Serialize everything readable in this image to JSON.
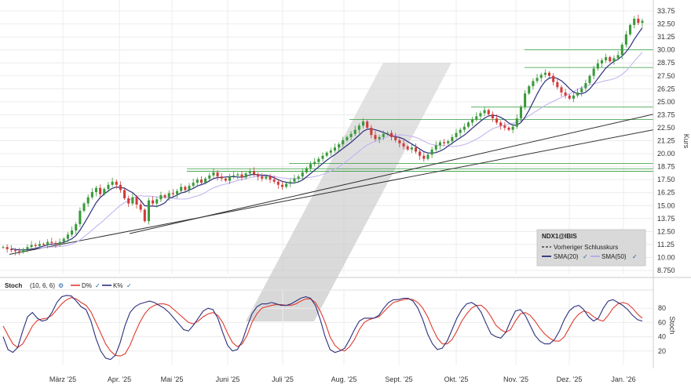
{
  "chart_data": [
    {
      "type": "candlestick",
      "symbol": "NDX1@IBIS",
      "ylabel": "Kurs",
      "ylim": [
        8.75,
        33.75
      ],
      "y_ticks": [
        "33.75",
        "32.50",
        "31.25",
        "30.00",
        "28.75",
        "27.50",
        "26.25",
        "25.00",
        "23.75",
        "22.50",
        "21.25",
        "20.00",
        "18.75",
        "17.50",
        "16.25",
        "15.00",
        "13.75",
        "12.50",
        "11.25",
        "10.00",
        "8.750"
      ],
      "x_ticks": [
        "März '25",
        "Apr. '25",
        "Mai '25",
        "Juni '25",
        "Juli '25",
        "Aug. '25",
        "Sept. '25",
        "Okt. '25",
        "Nov. '25",
        "Dez. '25",
        "Jan. '26"
      ],
      "legend": {
        "title": "NDX1@IBIS",
        "items": [
          "Vorheriger Schlusskurs",
          "SMA(20)",
          "SMA(50)"
        ]
      },
      "close_series": [
        11.0,
        10.8,
        10.7,
        10.6,
        10.5,
        10.8,
        11.0,
        11.2,
        11.1,
        11.3,
        11.2,
        11.5,
        11.4,
        11.3,
        11.5,
        11.8,
        12.2,
        12.6,
        13.2,
        14.5,
        15.2,
        15.8,
        16.3,
        16.7,
        16.1,
        16.6,
        17.0,
        17.3,
        17.0,
        16.5,
        15.7,
        15.2,
        15.8,
        15.1,
        14.6,
        13.5,
        15.5,
        15.2,
        15.6,
        16.0,
        15.8,
        16.2,
        16.1,
        16.4,
        16.8,
        16.5,
        16.9,
        17.2,
        17.5,
        17.2,
        17.6,
        17.9,
        18.2,
        17.8,
        17.6,
        17.4,
        17.8,
        17.9,
        18.0,
        17.7,
        18.1,
        18.3,
        18.0,
        17.8,
        17.6,
        17.8,
        17.5,
        17.3,
        17.0,
        16.8,
        17.1,
        17.3,
        17.6,
        17.8,
        18.2,
        18.6,
        19.0,
        19.2,
        19.5,
        19.8,
        20.1,
        20.3,
        20.6,
        20.9,
        21.3,
        21.6,
        21.9,
        22.3,
        22.7,
        23.1,
        22.5,
        21.8,
        21.4,
        21.6,
        21.9,
        22.0,
        21.6,
        21.3,
        21.0,
        20.7,
        20.4,
        20.6,
        20.2,
        19.8,
        19.5,
        19.9,
        20.4,
        20.8,
        21.1,
        21.0,
        21.2,
        21.6,
        22.0,
        22.3,
        22.6,
        23.0,
        23.3,
        23.6,
        23.9,
        24.2,
        23.8,
        23.4,
        23.0,
        22.7,
        22.5,
        22.3,
        22.6,
        23.4,
        24.5,
        25.8,
        26.5,
        27.0,
        27.3,
        27.6,
        27.8,
        27.5,
        26.9,
        26.4,
        25.9,
        25.6,
        25.3,
        25.6,
        25.9,
        26.3,
        26.8,
        27.5,
        28.2,
        28.7,
        29.0,
        29.3,
        28.9,
        29.2,
        29.5,
        30.5,
        31.5,
        32.4,
        33.0,
        32.6,
        32.8
      ]
    },
    {
      "type": "line",
      "label": "Stoch",
      "params": "(10, 6, 6)",
      "ylabel": "Stoch",
      "ylim": [
        0,
        100
      ],
      "y_ticks": [
        "80",
        "60",
        "40",
        "20"
      ],
      "series": [
        {
          "name": "D%",
          "color": "#e03b2e",
          "values": [
            55,
            42,
            30,
            25,
            30,
            42,
            55,
            63,
            65,
            66,
            70,
            78,
            86,
            92,
            95,
            93,
            88,
            84,
            75,
            60,
            45,
            30,
            20,
            14,
            13,
            16,
            28,
            45,
            60,
            72,
            80,
            84,
            86,
            86,
            84,
            78,
            72,
            66,
            60,
            58,
            62,
            68,
            72,
            74,
            70,
            60,
            45,
            32,
            26,
            30,
            42,
            60,
            72,
            80,
            82,
            84,
            85,
            85,
            84,
            84,
            86,
            90,
            93,
            93,
            88,
            76,
            60,
            40,
            28,
            22,
            20,
            26,
            36,
            50,
            60,
            64,
            66,
            68,
            75,
            82,
            88,
            90,
            92,
            93,
            92,
            88,
            80,
            68,
            52,
            38,
            30,
            30,
            36,
            48,
            62,
            72,
            80,
            84,
            84,
            78,
            68,
            56,
            50,
            46,
            50,
            62,
            72,
            74,
            70,
            62,
            52,
            44,
            38,
            34,
            34,
            40,
            52,
            64,
            72,
            76,
            74,
            68,
            64,
            62,
            70,
            80,
            86,
            88,
            86,
            80,
            72,
            66
          ]
        },
        {
          "name": "K%",
          "color": "#2b2f7c",
          "values": [
            40,
            22,
            18,
            25,
            48,
            68,
            74,
            66,
            62,
            64,
            74,
            88,
            96,
            98,
            97,
            90,
            82,
            78,
            62,
            38,
            20,
            10,
            8,
            14,
            32,
            56,
            74,
            82,
            86,
            88,
            90,
            88,
            84,
            80,
            74,
            66,
            58,
            50,
            48,
            56,
            66,
            76,
            80,
            78,
            66,
            46,
            28,
            20,
            22,
            34,
            54,
            72,
            82,
            86,
            86,
            88,
            86,
            84,
            84,
            86,
            90,
            94,
            96,
            94,
            84,
            64,
            40,
            22,
            18,
            20,
            24,
            36,
            50,
            62,
            66,
            66,
            66,
            70,
            80,
            88,
            92,
            92,
            94,
            94,
            90,
            80,
            64,
            44,
            30,
            22,
            24,
            34,
            50,
            66,
            78,
            86,
            88,
            84,
            74,
            58,
            44,
            40,
            38,
            46,
            62,
            76,
            78,
            70,
            56,
            42,
            34,
            30,
            30,
            36,
            48,
            64,
            76,
            82,
            84,
            78,
            68,
            62,
            66,
            80,
            90,
            92,
            88,
            84,
            78,
            70,
            64,
            62
          ]
        }
      ]
    }
  ]
}
